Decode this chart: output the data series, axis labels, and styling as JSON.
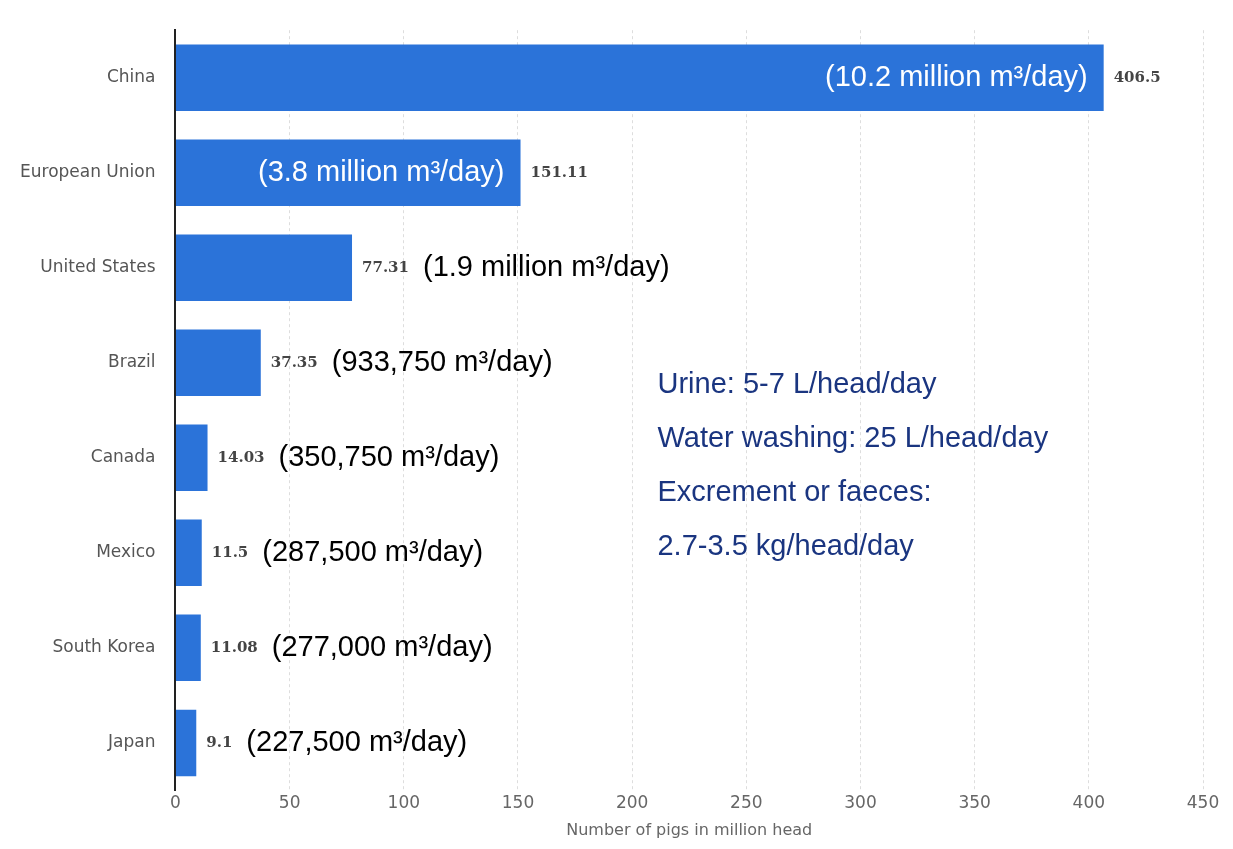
{
  "chart_data": {
    "type": "bar",
    "orientation": "horizontal",
    "categories": [
      "China",
      "European Union",
      "United States",
      "Brazil",
      "Canada",
      "Mexico",
      "South Korea",
      "Japan"
    ],
    "values": [
      406.5,
      151.11,
      77.31,
      37.35,
      14.03,
      11.5,
      11.08,
      9.1
    ],
    "color": "#2b73d9",
    "data_labels": true,
    "xlim": [
      0,
      450
    ],
    "xticks": [
      0,
      50,
      100,
      150,
      200,
      250,
      300,
      350,
      400,
      450
    ],
    "xlabel": "Number of pigs in million head",
    "grid": "x",
    "annotations": [
      {
        "text": "(10.2 million m³/day)",
        "x": 406.5,
        "y": "China"
      },
      {
        "text": "(3.8 million m³/day)",
        "x": 151.11,
        "y": "European Union"
      },
      {
        "text": "(1.9 million m³/day)",
        "x": 77.31,
        "y": "United States"
      },
      {
        "text": "(933,750 m³/day)",
        "x": 37.35,
        "y": "Brazil"
      },
      {
        "text": "(350,750 m³/day)",
        "x": 14.03,
        "y": "Canada"
      },
      {
        "text": "(287,500 m³/day)",
        "x": 11.5,
        "y": "Mexico"
      },
      {
        "text": "(277,000 m³/day)",
        "x": 11.08,
        "y": "South Korea"
      },
      {
        "text": "(227,500 m³/day)",
        "x": 9.1,
        "y": "Japan"
      },
      "Urine: 5-7 L/head/day",
      "Water washing: 25 L/head/day",
      "Excrement or faeces:",
      "2.7-3.5 kg/head/day"
    ]
  }
}
